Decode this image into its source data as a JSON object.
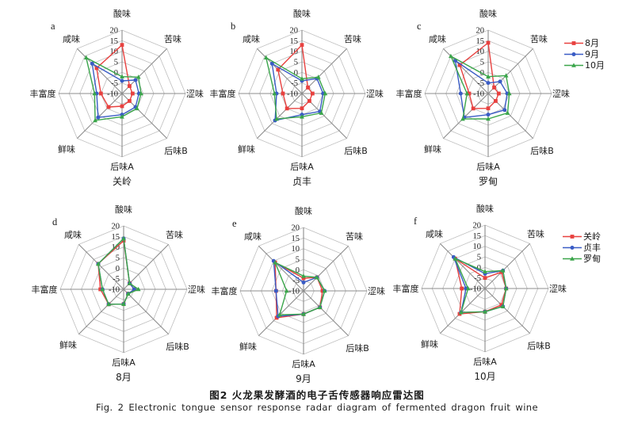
{
  "figure": {
    "caption_zh": "图2  火龙果发酵酒的电子舌传感器响应雷达图",
    "caption_en": "Fig. 2 Electronic tongue sensor response radar diagram of fermented dragon fruit wine"
  },
  "colors": {
    "series": [
      "#e8413f",
      "#3a5cc5",
      "#3aa54a"
    ],
    "grid_ring": "#bdbdbd",
    "axis_spoke": "#8c8c8c",
    "text": "#1a1a1a"
  },
  "marker_shapes": [
    "square",
    "circle",
    "triangle"
  ],
  "axes": [
    "酸味",
    "苦味",
    "涩味",
    "后味B",
    "后味A",
    "鲜味",
    "丰富度",
    "咸味"
  ],
  "scale": {
    "min": -10,
    "max": 20,
    "step": 5,
    "ticks": [
      20,
      15,
      10,
      5,
      0,
      -5,
      -10
    ]
  },
  "legends": {
    "months": [
      {
        "label": "8月"
      },
      {
        "label": "9月"
      },
      {
        "label": "10月"
      }
    ],
    "regions": [
      {
        "label": "关岭"
      },
      {
        "label": "贞丰"
      },
      {
        "label": "罗甸"
      }
    ]
  },
  "chart_data": [
    {
      "type": "radar",
      "panel": "a",
      "subtitle": "关岭",
      "categories": [
        "酸味",
        "苦味",
        "涩味",
        "后味B",
        "后味A",
        "鲜味",
        "丰富度",
        "咸味"
      ],
      "axis_range": [
        -10,
        20
      ],
      "grid": true,
      "series": [
        {
          "name": "8月",
          "values": [
            13,
            -5,
            -5,
            -5,
            -4,
            -1,
            0,
            7
          ]
        },
        {
          "name": "9月",
          "values": [
            -4,
            -1,
            -2,
            -1,
            0,
            6,
            2,
            10
          ]
        },
        {
          "name": "10月",
          "values": [
            -2,
            1,
            -1,
            0,
            1,
            8,
            3,
            14
          ]
        }
      ]
    },
    {
      "type": "radar",
      "panel": "b",
      "subtitle": "贞丰",
      "categories": [
        "酸味",
        "苦味",
        "涩味",
        "后味B",
        "后味A",
        "鲜味",
        "丰富度",
        "咸味"
      ],
      "axis_range": [
        -10,
        20
      ],
      "grid": true,
      "series": [
        {
          "name": "8月",
          "values": [
            13,
            -6,
            -5,
            -5,
            -3,
            0,
            -1,
            6
          ]
        },
        {
          "name": "9月",
          "values": [
            -4,
            0,
            0,
            2,
            0,
            8,
            2,
            10
          ]
        },
        {
          "name": "10月",
          "values": [
            -3,
            1,
            1,
            3,
            1,
            7,
            3,
            14
          ]
        }
      ]
    },
    {
      "type": "radar",
      "panel": "c",
      "subtitle": "罗甸",
      "categories": [
        "酸味",
        "苦味",
        "涩味",
        "后味B",
        "后味A",
        "鲜味",
        "丰富度",
        "咸味"
      ],
      "axis_range": [
        -10,
        20
      ],
      "grid": true,
      "series": [
        {
          "name": "8月",
          "values": [
            14,
            -6,
            -5,
            -5,
            -3,
            0,
            -1,
            9
          ]
        },
        {
          "name": "9月",
          "values": [
            -5,
            -2,
            -1,
            1,
            0,
            6,
            3,
            12
          ]
        },
        {
          "name": "10月",
          "values": [
            -2,
            2,
            0,
            3,
            2,
            7,
            0,
            15
          ]
        }
      ]
    },
    {
      "type": "radar",
      "panel": "d",
      "subtitle": "8月",
      "categories": [
        "酸味",
        "苦味",
        "涩味",
        "后味B",
        "后味A",
        "鲜味",
        "丰富度",
        "咸味"
      ],
      "axis_range": [
        -10,
        20
      ],
      "grid": true,
      "series": [
        {
          "name": "关岭",
          "values": [
            13,
            -6,
            -5,
            -7,
            -3,
            0,
            1,
            7
          ]
        },
        {
          "name": "贞丰",
          "values": [
            14,
            -6,
            -5,
            -7,
            -3,
            0,
            0,
            7
          ]
        },
        {
          "name": "罗甸",
          "values": [
            14,
            -6,
            -3,
            -7,
            -3,
            0,
            0,
            7
          ]
        }
      ]
    },
    {
      "type": "radar",
      "panel": "e",
      "subtitle": "9月",
      "categories": [
        "酸味",
        "苦味",
        "涩味",
        "后味B",
        "后味A",
        "鲜味",
        "丰富度",
        "咸味"
      ],
      "axis_range": [
        -10,
        20
      ],
      "grid": true,
      "series": [
        {
          "name": "关岭",
          "values": [
            -4,
            -1,
            -1,
            1,
            1,
            8,
            3,
            9
          ]
        },
        {
          "name": "贞丰",
          "values": [
            -6,
            -1,
            0,
            1,
            1,
            7,
            3,
            10
          ]
        },
        {
          "name": "罗甸",
          "values": [
            -3,
            -1,
            0,
            1,
            1,
            6,
            -2,
            9
          ]
        }
      ]
    },
    {
      "type": "radar",
      "panel": "f",
      "subtitle": "10月",
      "categories": [
        "酸味",
        "苦味",
        "涩味",
        "后味B",
        "后味A",
        "鲜味",
        "丰富度",
        "咸味"
      ],
      "axis_range": [
        -10,
        20
      ],
      "grid": true,
      "series": [
        {
          "name": "关岭",
          "values": [
            -5,
            1,
            0,
            1,
            1,
            7,
            1,
            10
          ]
        },
        {
          "name": "贞丰",
          "values": [
            -3,
            2,
            0,
            2,
            1,
            6,
            -1,
            11
          ]
        },
        {
          "name": "罗甸",
          "values": [
            -2,
            2,
            0,
            2,
            1,
            6,
            -2,
            10
          ]
        }
      ]
    }
  ]
}
